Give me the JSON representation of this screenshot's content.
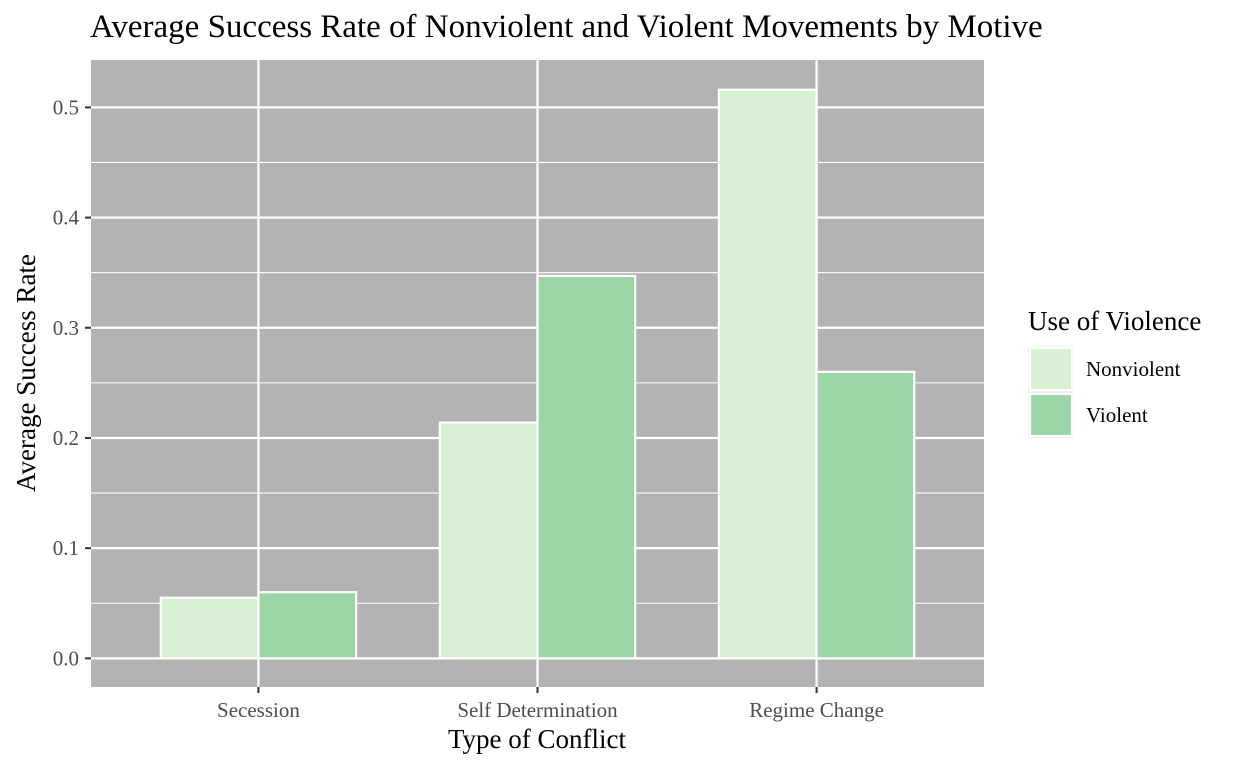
{
  "chart_data": {
    "type": "bar",
    "title": "Average Success Rate of Nonviolent and Violent Movements by Motive",
    "xlabel": "Type of Conflict",
    "ylabel": "Average Success Rate",
    "categories": [
      "Secession",
      "Self Determination",
      "Regime Change"
    ],
    "series": [
      {
        "name": "Nonviolent",
        "values": [
          0.055,
          0.214,
          0.516
        ],
        "color": "#d7efd3"
      },
      {
        "name": "Violent",
        "values": [
          0.06,
          0.347,
          0.26
        ],
        "color": "#9ad5a5"
      }
    ],
    "ylim": [
      -0.026,
      0.543
    ],
    "yticks": [
      0.0,
      0.1,
      0.2,
      0.3,
      0.4,
      0.5
    ],
    "ytick_labels": [
      "0.0",
      "0.1",
      "0.2",
      "0.3",
      "0.4",
      "0.5"
    ],
    "grid": true,
    "panel_background": "#b3b3b3",
    "grid_color": "#ffffff",
    "legend": {
      "title": "Use of Violence",
      "placement": "right"
    }
  }
}
